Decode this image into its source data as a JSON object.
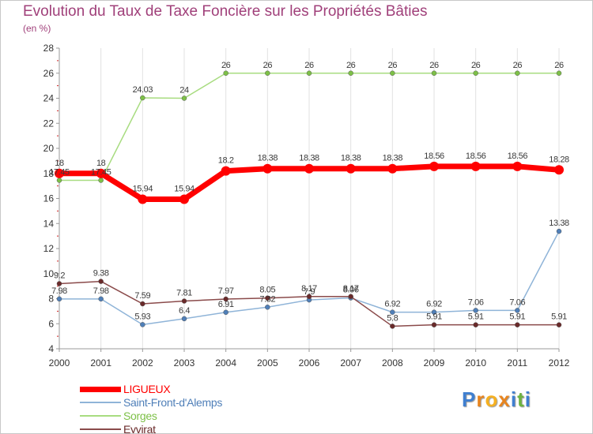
{
  "title": "Evolution du Taux de Taxe Foncière sur les Propriétés Bâties",
  "subtitle": "(en %)",
  "logo": {
    "letters": [
      "P",
      "r",
      "o",
      "x",
      "i",
      "t",
      "i"
    ],
    "colors": [
      "#3f7fd0",
      "#e8851f",
      "#f5b021",
      "#e8851f",
      "#3f7fd0",
      "#6db33f",
      "#3f7fd0"
    ]
  },
  "chart_data": {
    "type": "line",
    "categories": [
      "2000",
      "2001",
      "2002",
      "2003",
      "2004",
      "2005",
      "2006",
      "2007",
      "2008",
      "2009",
      "2010",
      "2011",
      "2012"
    ],
    "ylim": [
      4,
      28
    ],
    "yticks": [
      4,
      6,
      8,
      10,
      12,
      14,
      16,
      18,
      20,
      22,
      24,
      26,
      28
    ],
    "grid": "vertical",
    "legend_position": "bottom-left",
    "series": [
      {
        "name": "LIGUEUX",
        "values": [
          18,
          18,
          15.94,
          15.94,
          18.2,
          18.38,
          18.38,
          18.38,
          18.38,
          18.56,
          18.56,
          18.56,
          18.28
        ],
        "labels": [
          "18",
          "18",
          "15.94",
          "15.94",
          "18.2",
          "18.38",
          "18.38",
          "18.38",
          "18.38",
          "18.56",
          "18.56",
          "18.56",
          "18.28"
        ],
        "color": "#ff0000",
        "line_color": "#ff0000",
        "width": 7,
        "marker": 6,
        "label_dy": -10
      },
      {
        "name": "Saint-Front-d'Alemps",
        "values": [
          7.98,
          7.98,
          5.93,
          6.4,
          6.91,
          7.32,
          7.9,
          8.06,
          6.92,
          6.92,
          7.06,
          7.06,
          13.38
        ],
        "labels": [
          "7.98",
          "7.98",
          "5.93",
          "6.4",
          "6.91",
          "7.32",
          "7.9",
          "8.06",
          "6.92",
          "6.92",
          "7.06",
          "7.06",
          "13.38"
        ],
        "color": "#4f7fb8",
        "line_color": "#8fb4d8",
        "width": 1.5,
        "marker": 3,
        "label_dy": -7
      },
      {
        "name": "Sorges",
        "values": [
          17.45,
          17.45,
          24.03,
          24,
          26,
          26,
          26,
          26,
          26,
          26,
          26,
          26,
          26
        ],
        "labels": [
          "17.45",
          "17.45",
          "24.03",
          "24",
          "26",
          "26",
          "26",
          "26",
          "26",
          "26",
          "26",
          "26",
          "26"
        ],
        "color": "#7dc047",
        "line_color": "#a8dc80",
        "width": 1.5,
        "marker": 3,
        "label_dy": -7
      },
      {
        "name": "Eyvirat",
        "values": [
          9.2,
          9.38,
          7.59,
          7.81,
          7.97,
          8.05,
          8.17,
          8.17,
          5.8,
          5.91,
          5.91,
          5.91,
          5.91
        ],
        "labels": [
          "9.2",
          "9.38",
          "7.59",
          "7.81",
          "7.97",
          "8.05",
          "8.17",
          "8.17",
          "5.8",
          "5.91",
          "5.91",
          "5.91",
          "5.91"
        ],
        "color": "#6a2a2a",
        "line_color": "#8a4a4a",
        "width": 1.5,
        "marker": 3,
        "label_dy": -7
      }
    ]
  }
}
